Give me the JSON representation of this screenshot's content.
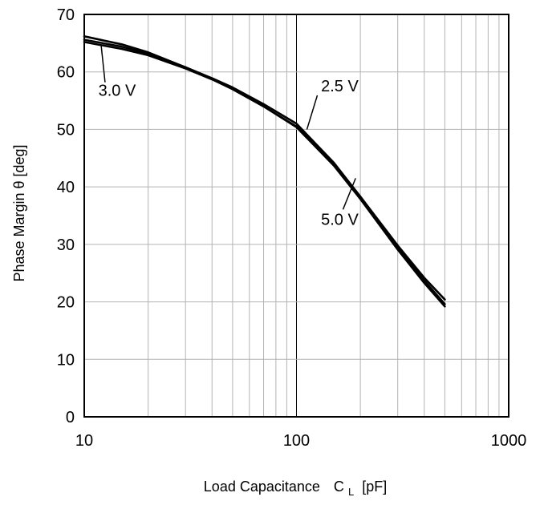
{
  "chart_data": {
    "type": "line",
    "title": "",
    "xlabel": "Load Capacitance",
    "xlabel_symbol": "C",
    "xlabel_subscript": "L",
    "xlabel_unit": "[pF]",
    "ylabel": "Phase Margin  θ [deg]",
    "xscale": "log",
    "xlim": [
      10,
      1000
    ],
    "ylim": [
      0,
      70
    ],
    "grid": true,
    "legend": "none",
    "x_ticks": [
      10,
      100,
      1000
    ],
    "x_tick_labels": [
      "10",
      "100",
      "1000"
    ],
    "y_ticks": [
      0,
      10,
      20,
      30,
      40,
      50,
      60,
      70
    ],
    "y_tick_labels": [
      "0",
      "10",
      "20",
      "30",
      "40",
      "50",
      "60",
      "70"
    ],
    "series": [
      {
        "name": "2.5 V",
        "x": [
          10,
          15,
          20,
          30,
          40,
          50,
          70,
          100,
          150,
          200,
          300,
          400,
          500
        ],
        "y": [
          66.2,
          64.8,
          63.4,
          60.8,
          58.8,
          57.0,
          54.0,
          50.5,
          44.0,
          38.3,
          29.8,
          24.2,
          20.4
        ]
      },
      {
        "name": "3.0 V",
        "x": [
          10,
          15,
          20,
          30,
          40,
          50,
          70,
          100,
          150,
          200,
          300,
          400,
          500
        ],
        "y": [
          65.6,
          64.4,
          63.2,
          60.8,
          58.9,
          57.3,
          54.4,
          51.0,
          44.2,
          38.3,
          29.5,
          23.7,
          19.6
        ]
      },
      {
        "name": "5.0 V",
        "x": [
          10,
          15,
          20,
          30,
          40,
          50,
          70,
          100,
          150,
          200,
          300,
          400,
          500
        ],
        "y": [
          65.2,
          64.0,
          62.9,
          60.6,
          58.7,
          57.0,
          54.0,
          50.4,
          43.7,
          37.9,
          29.1,
          23.3,
          19.2
        ]
      }
    ],
    "annotations": [
      {
        "text": "3.0 V",
        "series": "3.0 V",
        "label_x": 12.0,
        "label_y": 56.8,
        "point_x": 12.0,
        "point_y": 64.8
      },
      {
        "text": "2.5 V",
        "series": "2.5 V",
        "label_x": 160,
        "label_y": 57.6,
        "point_x": 112,
        "point_y": 50.0
      },
      {
        "text": "5.0 V",
        "series": "5.0 V",
        "label_x": 160,
        "label_y": 34.4,
        "point_x": 190,
        "point_y": 41.5
      }
    ]
  }
}
